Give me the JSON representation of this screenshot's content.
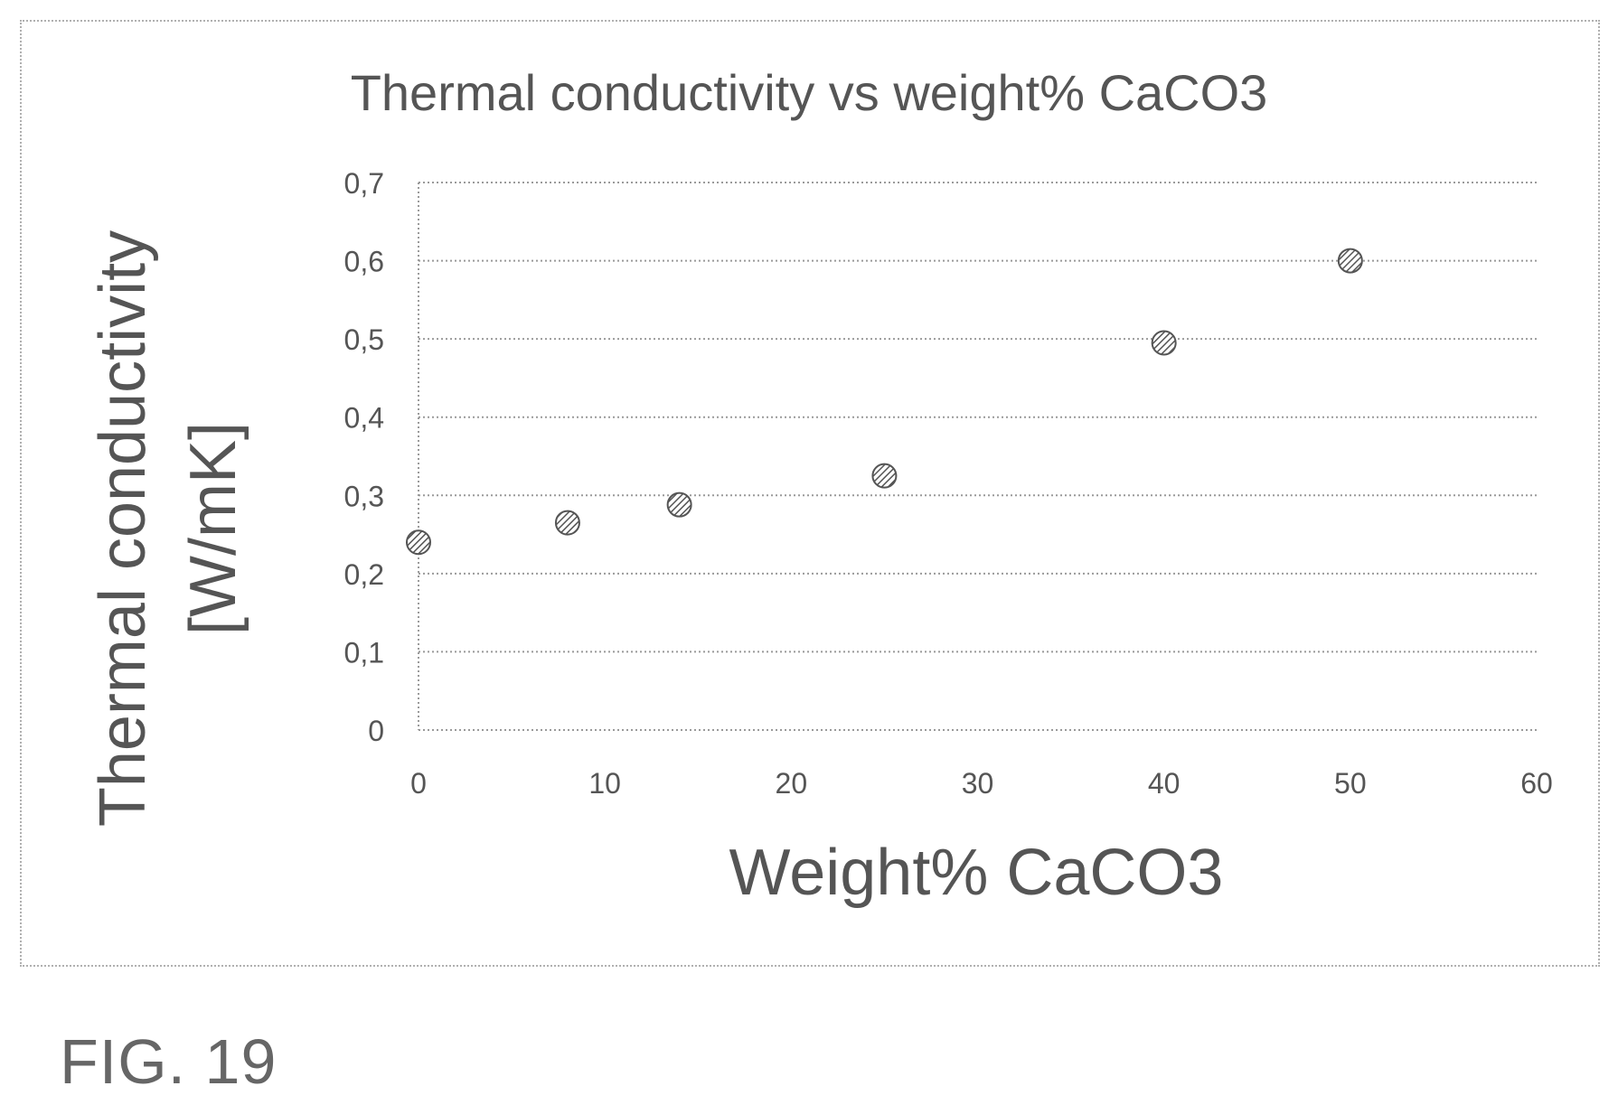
{
  "chart_data": {
    "type": "scatter",
    "title": "Thermal conductivity vs weight% CaCO3",
    "xlabel": "Weight% CaCO3",
    "ylabel_lines": [
      "Thermal conductivity",
      "[W/mK]"
    ],
    "xlim": [
      0,
      60
    ],
    "ylim": [
      0,
      0.7
    ],
    "x_ticks": [
      {
        "value": 0,
        "label": "0"
      },
      {
        "value": 10,
        "label": "10"
      },
      {
        "value": 20,
        "label": "20"
      },
      {
        "value": 30,
        "label": "30"
      },
      {
        "value": 40,
        "label": "40"
      },
      {
        "value": 50,
        "label": "50"
      },
      {
        "value": 60,
        "label": "60"
      }
    ],
    "y_ticks": [
      {
        "value": 0,
        "label": "0"
      },
      {
        "value": 0.1,
        "label": "0,1"
      },
      {
        "value": 0.2,
        "label": "0,2"
      },
      {
        "value": 0.3,
        "label": "0,3"
      },
      {
        "value": 0.4,
        "label": "0,4"
      },
      {
        "value": 0.5,
        "label": "0,5"
      },
      {
        "value": 0.6,
        "label": "0,6"
      },
      {
        "value": 0.7,
        "label": "0,7"
      }
    ],
    "grid": "horizontal",
    "legend": "none",
    "series": [
      {
        "x": [
          0,
          8,
          14,
          25,
          40,
          50
        ],
        "y": [
          0.24,
          0.265,
          0.288,
          0.325,
          0.495,
          0.6
        ]
      }
    ],
    "marker_color": "#555555"
  },
  "figure_label": "FIG. 19"
}
